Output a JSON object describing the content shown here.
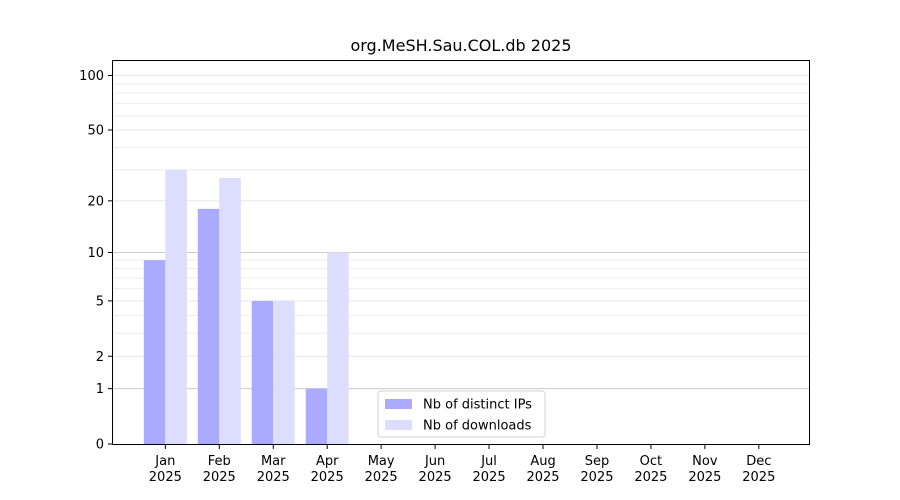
{
  "chart_data": {
    "type": "bar",
    "title": "org.MeSH.Sau.COL.db 2025",
    "xlabel": "",
    "ylabel": "",
    "y_scale": "symlog",
    "ylim": [
      0,
      120
    ],
    "yticks": [
      0,
      1,
      2,
      5,
      10,
      20,
      50,
      100
    ],
    "grid": true,
    "legend_position": "bottom-center",
    "categories": [
      "Jan\n2025",
      "Feb\n2025",
      "Mar\n2025",
      "Apr\n2025",
      "May\n2025",
      "Jun\n2025",
      "Jul\n2025",
      "Aug\n2025",
      "Sep\n2025",
      "Oct\n2025",
      "Nov\n2025",
      "Dec\n2025"
    ],
    "series": [
      {
        "name": "Nb of distinct IPs",
        "color": "#aaaaff",
        "values": [
          9,
          18,
          5,
          1,
          0,
          0,
          0,
          0,
          0,
          0,
          0,
          0
        ]
      },
      {
        "name": "Nb of downloads",
        "color": "#ddddff",
        "values": [
          30,
          27,
          5,
          10,
          0,
          0,
          0,
          0,
          0,
          0,
          0,
          0
        ]
      }
    ]
  }
}
